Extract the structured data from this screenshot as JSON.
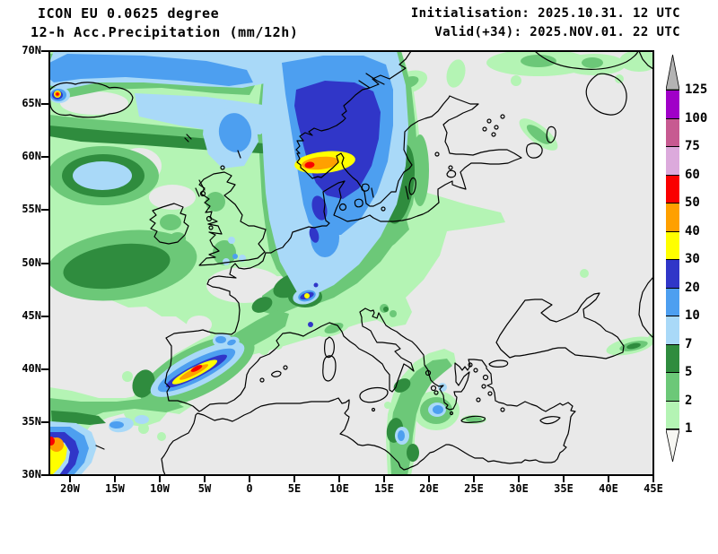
{
  "header": {
    "model": "ICON EU 0.0625 degree",
    "product": "12-h Acc.Precipitation (mm/12h)",
    "init": "Initialisation: 2025.10.31. 12 UTC",
    "valid": "Valid(+34): 2025.NOV.01. 22 UTC"
  },
  "map": {
    "background": "#e9e9e9",
    "coastline_color": "#000000",
    "frame_color": "#000000",
    "lat_ticks": [
      "70N",
      "65N",
      "60N",
      "55N",
      "50N",
      "45N",
      "40N",
      "35N",
      "30N"
    ],
    "lon_ticks": [
      "20W",
      "15W",
      "10W",
      "5W",
      "0",
      "5E",
      "10E",
      "15E",
      "20E",
      "25E",
      "30E",
      "35E",
      "40E",
      "45E"
    ]
  },
  "colorbar": {
    "over_color": "#b3b3b3",
    "under_color": "#f7f7f3",
    "cells": [
      {
        "top_label": "125",
        "color": "#a000c8"
      },
      {
        "top_label": "100",
        "color": "#c75a91"
      },
      {
        "top_label": "75",
        "color": "#dcaadc"
      },
      {
        "top_label": "60",
        "color": "#fa0000"
      },
      {
        "top_label": "50",
        "color": "#ffa000"
      },
      {
        "top_label": "40",
        "color": "#ffff00"
      },
      {
        "top_label": "30",
        "color": "#3036c8"
      },
      {
        "top_label": "20",
        "color": "#4d9ff0"
      },
      {
        "top_label": "10",
        "color": "#a9d9f8"
      },
      {
        "top_label": "7",
        "color": "#2f8c3e"
      },
      {
        "top_label": "5",
        "color": "#6cc878"
      },
      {
        "top_label": "2",
        "color": "#b4f4b4"
      }
    ],
    "bottom_label": "1"
  },
  "chart_data": {
    "type": "heatmap",
    "title": "12-h Acc.Precipitation (mm/12h)",
    "model": "ICON EU 0.0625 degree",
    "initialisation": "2025.10.31. 12 UTC",
    "valid": "2025.NOV.01. 22 UTC",
    "lead_time_hours": 34,
    "units": "mm/12h",
    "projection": "regular lat-lon, Europe",
    "lat_range_deg": [
      30,
      70
    ],
    "lon_range_deg": [
      -22.3,
      45
    ],
    "lat_ticks": [
      "70N",
      "65N",
      "60N",
      "55N",
      "50N",
      "45N",
      "40N",
      "35N",
      "30N"
    ],
    "lon_ticks": [
      "20W",
      "15W",
      "10W",
      "5W",
      "0",
      "5E",
      "10E",
      "15E",
      "20E",
      "25E",
      "30E",
      "35E",
      "40E",
      "45E"
    ],
    "scale_levels_mm": [
      1,
      2,
      5,
      7,
      10,
      20,
      30,
      40,
      50,
      60,
      75,
      100,
      125
    ],
    "palette": [
      {
        "range": "<1",
        "color": "#f7f7f3"
      },
      {
        "range": "1-2",
        "color": "#b4f4b4"
      },
      {
        "range": "2-5",
        "color": "#6cc878"
      },
      {
        "range": "5-7",
        "color": "#2f8c3e"
      },
      {
        "range": "7-10",
        "color": "#a9d9f8"
      },
      {
        "range": "10-20",
        "color": "#4d9ff0"
      },
      {
        "range": "20-30",
        "color": "#3036c8"
      },
      {
        "range": "30-40",
        "color": "#ffff00"
      },
      {
        "range": "40-50",
        "color": "#ffa000"
      },
      {
        "range": "50-60",
        "color": "#fa0000"
      },
      {
        "range": "60-75",
        "color": "#dcaadc"
      },
      {
        "range": "75-100",
        "color": "#c75a91"
      },
      {
        "range": "100-125",
        "color": "#a000c8"
      },
      {
        "range": ">125",
        "color": "#b3b3b3"
      }
    ],
    "maxima": [
      {
        "region": "Southern Norway / Skagerrak",
        "value_mm": "50-60"
      },
      {
        "region": "Central Iberia SW-NE band",
        "value_mm": "50-60"
      },
      {
        "region": "NW Africa / Madeira area at map edge (30-34N, ~22W)",
        "value_mm": "50-60"
      },
      {
        "region": "West Iceland coast (small spot)",
        "value_mm": "50-60"
      },
      {
        "region": "Western Alps",
        "value_mm": "30-40"
      },
      {
        "region": "North Atlantic / British Isles widespread",
        "value_mm": "1-10"
      },
      {
        "region": "Ionian Sea / Greece arc",
        "value_mm": "1-10"
      }
    ]
  }
}
